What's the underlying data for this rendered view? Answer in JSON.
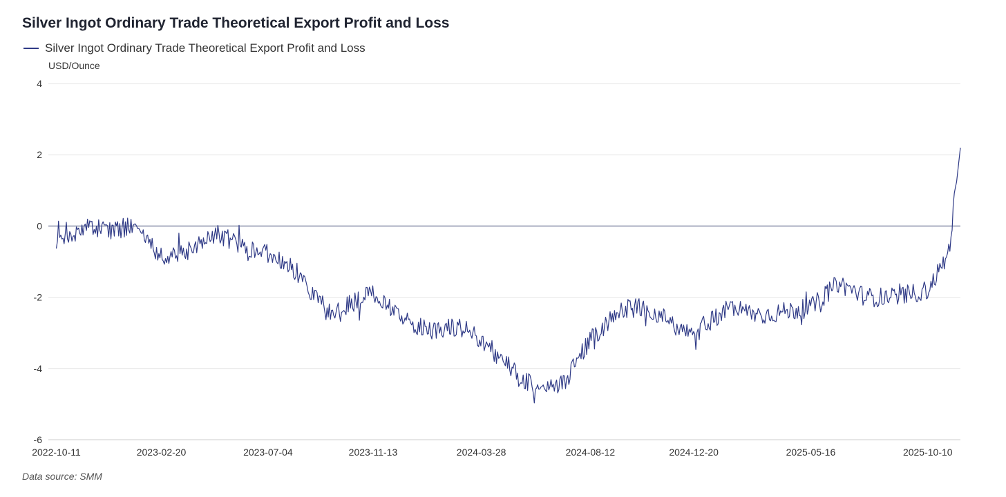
{
  "chart_data": {
    "type": "line",
    "title": "Silver Ingot Ordinary Trade Theoretical Export Profit and Loss",
    "ylabel": "USD/Ounce",
    "xlabel": "",
    "ylim": [
      -6,
      4
    ],
    "yticks": [
      4,
      2,
      0,
      -2,
      -4,
      -6
    ],
    "xticks": [
      "2022-10-11",
      "2023-02-20",
      "2023-07-04",
      "2023-11-13",
      "2024-03-28",
      "2024-08-12",
      "2024-12-20",
      "2025-05-16",
      "2025-10-10"
    ],
    "legend_position": "top-left",
    "grid": true,
    "series": [
      {
        "name": "Silver Ingot Ordinary Trade Theoretical Export Profit and Loss",
        "color": "#2f3a86",
        "x": [
          "2022-10-11",
          "2022-11-15",
          "2022-12-20",
          "2023-01-20",
          "2023-02-20",
          "2023-03-25",
          "2023-05-01",
          "2023-06-01",
          "2023-07-04",
          "2023-08-10",
          "2023-09-15",
          "2023-10-15",
          "2023-11-13",
          "2023-12-20",
          "2024-01-25",
          "2024-02-28",
          "2024-03-28",
          "2024-05-01",
          "2024-06-05",
          "2024-07-10",
          "2024-08-12",
          "2024-09-20",
          "2024-10-25",
          "2024-11-25",
          "2024-12-20",
          "2025-02-01",
          "2025-03-15",
          "2025-05-16",
          "2025-06-20",
          "2025-07-25",
          "2025-08-30",
          "2025-10-10",
          "2025-11-05",
          "2025-11-20"
        ],
        "values": [
          -0.5,
          0.0,
          -0.1,
          0.0,
          -0.9,
          -0.7,
          -0.2,
          -0.6,
          -0.8,
          -1.3,
          -2.4,
          -2.2,
          -1.9,
          -2.6,
          -3.0,
          -2.8,
          -3.2,
          -3.9,
          -4.6,
          -4.4,
          -3.2,
          -2.3,
          -2.3,
          -2.8,
          -3.0,
          -2.3,
          -2.5,
          -2.3,
          -1.6,
          -2.0,
          -2.0,
          -1.8,
          -0.8,
          2.2
        ]
      }
    ]
  },
  "footer": {
    "source": "Data source:  SMM"
  }
}
